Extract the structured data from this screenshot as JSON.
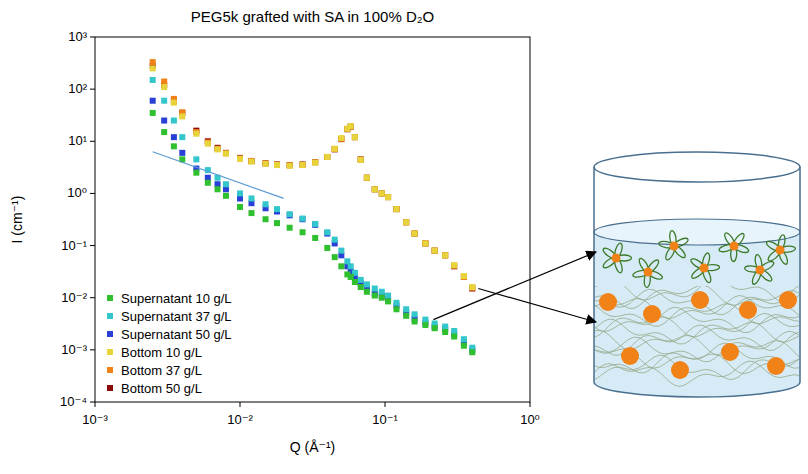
{
  "chart_data": {
    "type": "scatter",
    "title": "PEG5k grafted with SA in 100% D₂O",
    "x_label": "Q (Å⁻¹)",
    "y_label": "I (cm⁻¹)",
    "log": true,
    "grid": false,
    "legend": "lower left",
    "xlim": [
      0.001,
      1
    ],
    "ylim": [
      0.0001,
      1000
    ],
    "xticks": [
      {
        "value": 0.001,
        "label": "10⁻³"
      },
      {
        "value": 0.01,
        "label": "10⁻²"
      },
      {
        "value": 0.1,
        "label": "10⁻¹"
      },
      {
        "value": 1,
        "label": "10⁰"
      }
    ],
    "yticks": [
      {
        "value": 0.0001,
        "label": "10⁻⁴"
      },
      {
        "value": 0.001,
        "label": "10⁻³"
      },
      {
        "value": 0.01,
        "label": "10⁻²"
      },
      {
        "value": 0.1,
        "label": "10⁻¹"
      },
      {
        "value": 1,
        "label": "10⁰"
      },
      {
        "value": 10,
        "label": "10¹"
      },
      {
        "value": 100,
        "label": "10²"
      },
      {
        "value": 1000,
        "label": "10³"
      }
    ],
    "x": [
      0.0025,
      0.003,
      0.0035,
      0.004,
      0.005,
      0.006,
      0.007,
      0.008,
      0.01,
      0.012,
      0.015,
      0.018,
      0.022,
      0.027,
      0.033,
      0.04,
      0.045,
      0.05,
      0.055,
      0.058,
      0.062,
      0.068,
      0.075,
      0.085,
      0.095,
      0.105,
      0.12,
      0.14,
      0.16,
      0.19,
      0.22,
      0.26,
      0.3,
      0.35,
      0.4
    ],
    "series": [
      {
        "name": "Supernatant 10 g/L",
        "color": "#2fbf2f",
        "marker": "square",
        "values": [
          35,
          15,
          8,
          4.5,
          2.5,
          1.6,
          1.2,
          0.9,
          0.55,
          0.42,
          0.32,
          0.27,
          0.22,
          0.18,
          0.14,
          0.09,
          0.06,
          0.04,
          0.028,
          0.025,
          0.02,
          0.016,
          0.013,
          0.011,
          0.01,
          0.0085,
          0.006,
          0.0045,
          0.0035,
          0.003,
          0.0026,
          0.0022,
          0.0018,
          0.0012,
          0.0009
        ]
      },
      {
        "name": "Supernatant 37 g/L",
        "color": "#33c7cc",
        "marker": "square",
        "values": [
          150,
          60,
          25,
          12,
          4.5,
          2.8,
          2.0,
          1.5,
          1.0,
          0.8,
          0.62,
          0.5,
          0.4,
          0.33,
          0.26,
          0.18,
          0.13,
          0.08,
          0.05,
          0.04,
          0.03,
          0.022,
          0.018,
          0.015,
          0.013,
          0.011,
          0.008,
          0.006,
          0.0048,
          0.0038,
          0.0032,
          0.0028,
          0.0023,
          0.0016,
          0.0011
        ]
      },
      {
        "name": "Supernatant 50 g/L",
        "color": "#2a3fd6",
        "marker": "square",
        "values": [
          60,
          25,
          12,
          6,
          3,
          2,
          1.5,
          1.2,
          0.8,
          0.65,
          0.52,
          0.45,
          0.38,
          0.32,
          0.25,
          0.17,
          0.11,
          0.065,
          0.04,
          0.032,
          0.025,
          0.019,
          0.015,
          0.012,
          0.011,
          0.0095,
          0.007,
          0.0052,
          0.004,
          0.0033,
          0.0028,
          0.0025,
          0.002,
          0.0014,
          0.001
        ]
      },
      {
        "name": "Bottom 10 g/L",
        "color": "#e6d43a",
        "marker": "square",
        "values": [
          250,
          110,
          55,
          30,
          14,
          9,
          7,
          5.8,
          4.6,
          4.1,
          3.7,
          3.5,
          3.4,
          3.5,
          3.9,
          5.0,
          7.2,
          11.5,
          17.5,
          19.5,
          12,
          4.4,
          2.0,
          1.2,
          1.0,
          0.85,
          0.5,
          0.28,
          0.17,
          0.11,
          0.08,
          0.065,
          0.042,
          0.026,
          0.016
        ]
      },
      {
        "name": "Bottom 37 g/L",
        "color": "#f08218",
        "marker": "square",
        "values": [
          330,
          140,
          65,
          36,
          15,
          9.5,
          7.2,
          5.9,
          4.7,
          4.15,
          3.75,
          3.55,
          3.45,
          3.55,
          3.95,
          5.0,
          7.1,
          11.2,
          17.2,
          19.2,
          12,
          4.45,
          2.0,
          1.2,
          1.0,
          0.85,
          0.5,
          0.28,
          0.17,
          0.11,
          0.08,
          0.065,
          0.041,
          0.025,
          0.0155
        ]
      },
      {
        "name": "Bottom 50 g/L",
        "color": "#8b0a0a",
        "marker": "square",
        "values": [
          280,
          120,
          60,
          35,
          16,
          10,
          7.5,
          6,
          4.8,
          4.2,
          3.8,
          3.6,
          3.5,
          3.6,
          4.0,
          5.0,
          7,
          11,
          17,
          19,
          12,
          4.5,
          2.0,
          1.2,
          1.0,
          0.85,
          0.5,
          0.28,
          0.17,
          0.11,
          0.08,
          0.065,
          0.04,
          0.025,
          0.015
        ]
      },
      {
        "type": "line",
        "color": "#5b9bd5",
        "line_style": "solid",
        "x": [
          0.0025,
          0.02
        ],
        "values": [
          6.3,
          0.8
        ]
      }
    ]
  }
}
